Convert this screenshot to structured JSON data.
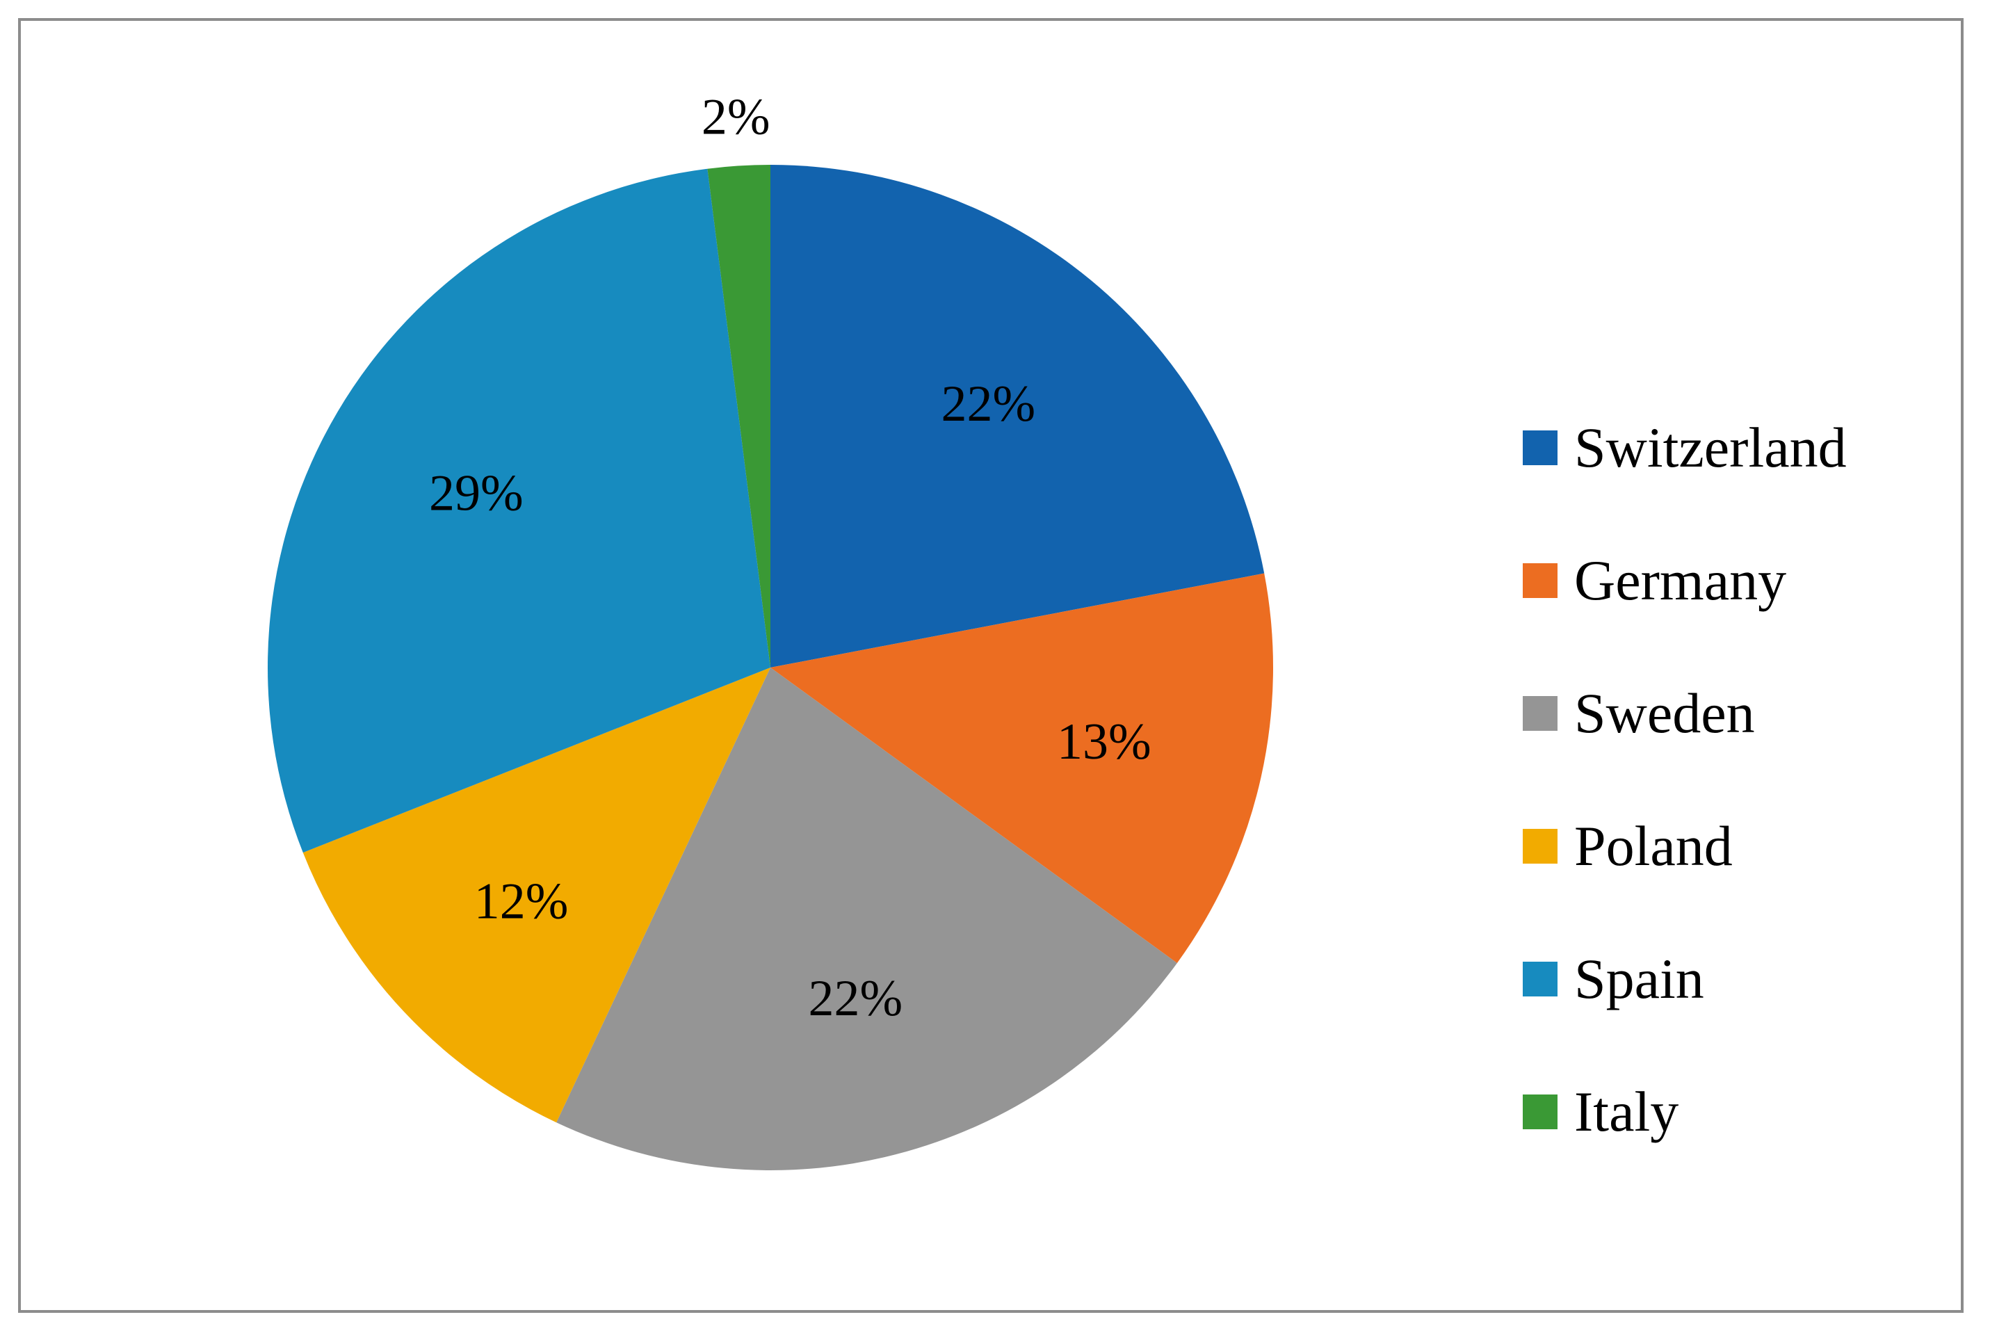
{
  "chart_data": {
    "type": "pie",
    "title": "",
    "start_angle_deg": 0,
    "direction": "clockwise",
    "legend_position": "right",
    "slices": [
      {
        "label": "Switzerland",
        "value": 22,
        "value_label": "22%",
        "color": "#1263ae"
      },
      {
        "label": "Germany",
        "value": 13,
        "value_label": "13%",
        "color": "#ec6d21"
      },
      {
        "label": "Sweden",
        "value": 22,
        "value_label": "22%",
        "color": "#959595"
      },
      {
        "label": "Poland",
        "value": 12,
        "value_label": "12%",
        "color": "#f2ab00"
      },
      {
        "label": "Spain",
        "value": 29,
        "value_label": "29%",
        "color": "#178bbf"
      },
      {
        "label": "Italy",
        "value": 2,
        "value_label": "2%",
        "color": "#3a9935"
      }
    ]
  }
}
